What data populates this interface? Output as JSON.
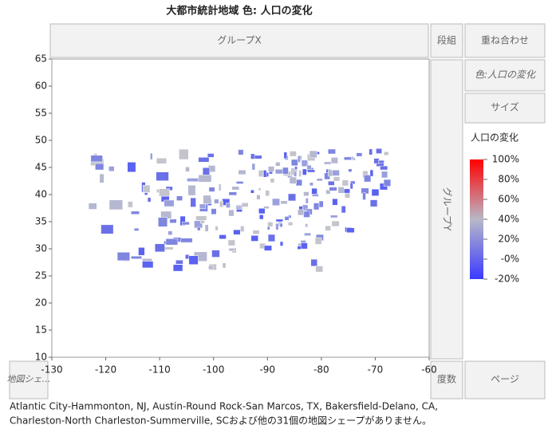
{
  "header": {
    "title": "大都市統計地域 色: 人口の変化"
  },
  "zones": {
    "group_x": "グループX",
    "wrap": "段組",
    "overlay": "重ね合わせ",
    "color": "色:人口の変化",
    "size": "サイズ",
    "group_y": "グループY",
    "freq": "度数",
    "page": "ページ",
    "map_shape": "地図シェ…"
  },
  "chart_data": {
    "type": "map",
    "xlim": [
      -130,
      -60
    ],
    "xticks": [
      -130,
      -120,
      -110,
      -100,
      -90,
      -80,
      -70,
      -60
    ],
    "ylim": [
      10,
      65
    ],
    "yticks": [
      10,
      15,
      20,
      25,
      30,
      35,
      40,
      45,
      50,
      55,
      60,
      65
    ],
    "legend": {
      "title": "人口の変化",
      "range": [
        -20,
        100
      ],
      "colors": [
        "#3a3aff",
        "#b8b8c8",
        "#ff0000"
      ],
      "ticks": [
        {
          "value": 100,
          "label": "100%"
        },
        {
          "value": 80,
          "label": "80%"
        },
        {
          "value": 60,
          "label": "60%"
        },
        {
          "value": 40,
          "label": "40%"
        },
        {
          "value": 20,
          "label": "20%"
        },
        {
          "value": 0,
          "label": "-0%"
        },
        {
          "value": -20,
          "label": "-20%"
        }
      ]
    }
  },
  "footnote": [
    "Atlantic City-Hammonton, NJ, Austin-Round Rock-San Marcos, TX, Bakersfield-Delano, CA,",
    "Charleston-North Charleston-Summerville, SCおよび他の31個の地図シェープがありません。"
  ]
}
